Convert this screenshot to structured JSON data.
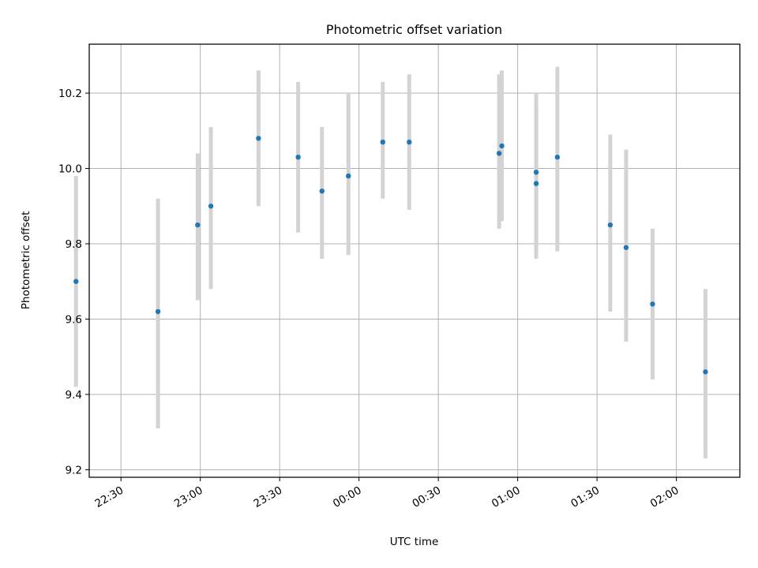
{
  "chart_data": {
    "type": "scatter",
    "title": "Photometric offset variation",
    "xlabel": "UTC time",
    "ylabel": "Photometric offset",
    "x_ticks": [
      "22:30",
      "23:00",
      "23:30",
      "00:00",
      "00:30",
      "01:00",
      "01:30",
      "02:00"
    ],
    "y_ticks": [
      "9.2",
      "9.4",
      "9.6",
      "9.8",
      "10.0",
      "10.2"
    ],
    "xlim": [
      "22:18",
      "02:24"
    ],
    "ylim": [
      9.18,
      10.33
    ],
    "grid": true,
    "errorbar_color": "#d3d3d3",
    "point_color": "#1f77b4",
    "points": [
      {
        "time": "22:13",
        "y": 9.7,
        "err_low": 9.42,
        "err_high": 9.98
      },
      {
        "time": "22:44",
        "y": 9.62,
        "err_low": 9.31,
        "err_high": 9.92
      },
      {
        "time": "22:59",
        "y": 9.85,
        "err_low": 9.65,
        "err_high": 10.04
      },
      {
        "time": "23:04",
        "y": 9.9,
        "err_low": 9.68,
        "err_high": 10.11
      },
      {
        "time": "23:22",
        "y": 10.08,
        "err_low": 9.9,
        "err_high": 10.26
      },
      {
        "time": "23:37",
        "y": 10.03,
        "err_low": 9.83,
        "err_high": 10.23
      },
      {
        "time": "23:46",
        "y": 9.94,
        "err_low": 9.76,
        "err_high": 10.11
      },
      {
        "time": "23:56",
        "y": 9.98,
        "err_low": 9.77,
        "err_high": 10.2
      },
      {
        "time": "00:09",
        "y": 10.07,
        "err_low": 9.92,
        "err_high": 10.23
      },
      {
        "time": "00:19",
        "y": 10.07,
        "err_low": 9.89,
        "err_high": 10.25
      },
      {
        "time": "00:53",
        "y": 10.04,
        "err_low": 9.84,
        "err_high": 10.25
      },
      {
        "time": "00:54",
        "y": 10.06,
        "err_low": 9.86,
        "err_high": 10.26
      },
      {
        "time": "01:07",
        "y": 9.96,
        "err_low": 9.76,
        "err_high": 10.17
      },
      {
        "time": "01:07",
        "y": 9.99,
        "err_low": 9.78,
        "err_high": 10.2
      },
      {
        "time": "01:15",
        "y": 10.03,
        "err_low": 9.78,
        "err_high": 10.27
      },
      {
        "time": "01:35",
        "y": 9.85,
        "err_low": 9.62,
        "err_high": 10.09
      },
      {
        "time": "01:41",
        "y": 9.79,
        "err_low": 9.54,
        "err_high": 10.05
      },
      {
        "time": "01:51",
        "y": 9.64,
        "err_low": 9.44,
        "err_high": 9.84
      },
      {
        "time": "02:11",
        "y": 9.46,
        "err_low": 9.23,
        "err_high": 9.68
      }
    ]
  }
}
